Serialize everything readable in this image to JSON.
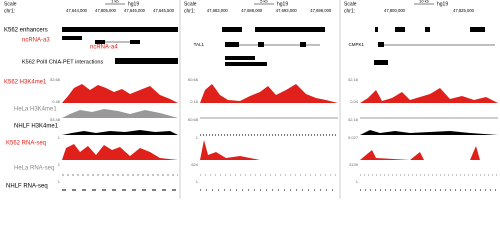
{
  "panels": [
    {
      "scale_label": "Scale",
      "chrom": "chr1:",
      "scale_bar": "1 kb",
      "assembly": "hg19",
      "coordinates": [
        "47,644,000",
        "47,805,000",
        "47,645,000",
        "47,645,500"
      ],
      "track_scales": [
        "52.66",
        "0.48",
        "53.48",
        "1",
        "1",
        "1"
      ]
    },
    {
      "scale_label": "Scale",
      "chrom": "chr1:",
      "scale_bar": "5 kb",
      "assembly": "hg19",
      "coordinates": [
        "47,683,000",
        "47,688,000",
        "47,693,000",
        "47,698,000"
      ],
      "gene": "TAL1",
      "track_scales": [
        "60.66",
        "0.16",
        "60.68",
        "1",
        "624",
        "1"
      ]
    },
    {
      "scale_label": "Scale",
      "chrom": "chr1:",
      "scale_bar": "10 kb",
      "assembly": "hg19",
      "coordinates": [
        "47,800,000",
        "47,825,000"
      ],
      "gene": "CMPK1",
      "track_scales": [
        "42.16",
        "0.04",
        "42.16",
        "0.027",
        "3139",
        "1"
      ]
    }
  ],
  "tracks": {
    "enhancers": "K562 enhancers",
    "ncrna_a3": "ncRNA-a3",
    "ncrna_a4": "ncRNA-a4",
    "chiapet": "K562 PolII ChIA-PET interactions",
    "k562_h3k4me1": "K562 H3K4me1",
    "hela_h3k4me1": "HeLa H3K4me1",
    "nhlf_h3k4me1": "NHLF H3K4me1",
    "k562_rnaseq": "K562 RNA-seq",
    "hela_rnaseq": "HeLa RNA-seq",
    "nhlf_rnaseq": "NHLF RNA-seq"
  }
}
